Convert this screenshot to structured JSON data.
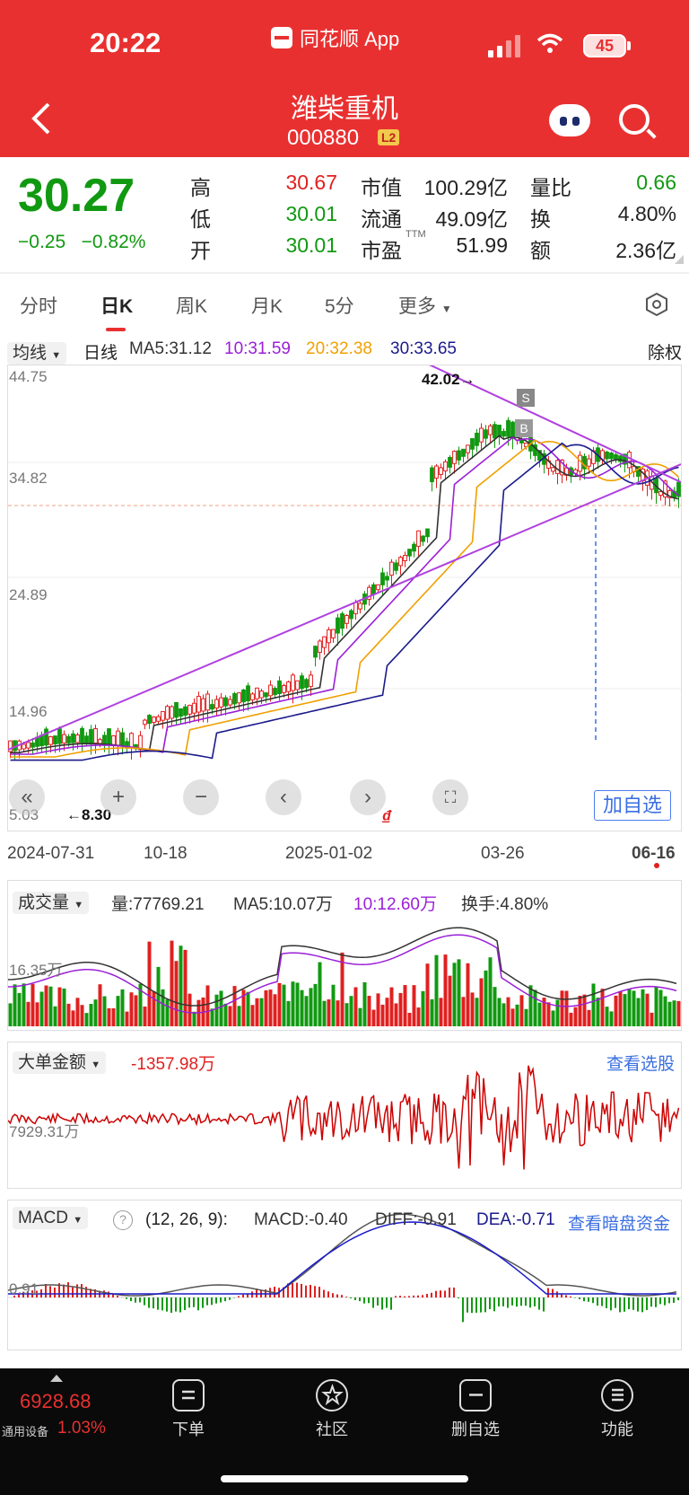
{
  "status_bar": {
    "time": "20:22",
    "app_name": "同花顺 App",
    "battery": "45"
  },
  "header": {
    "stock_name": "潍柴重机",
    "stock_code": "000880",
    "level_badge": "L2"
  },
  "quote": {
    "price": "30.27",
    "change": "−0.25",
    "change_pct": "−0.82%",
    "high_label": "高",
    "high": "30.67",
    "low_label": "低",
    "low": "30.01",
    "open_label": "开",
    "open": "30.01",
    "mcap_label": "市值",
    "mcap": "100.29亿",
    "float_label": "流通",
    "float": "49.09亿",
    "pe_label": "市盈",
    "pe_sup": "TTM",
    "pe": "51.99",
    "vol_ratio_label": "量比",
    "vol_ratio": "0.66",
    "turnover_label": "换",
    "turnover": "4.80%",
    "amount_label": "额",
    "amount": "2.36亿"
  },
  "tabs": [
    "分时",
    "日K",
    "周K",
    "月K",
    "5分",
    "更多"
  ],
  "active_tab": "日K",
  "ma_bar": {
    "selector": "均线",
    "period": "日线",
    "ma5": "MA5:31.12",
    "ma10": "10:31.59",
    "ma20": "20:32.38",
    "ma30": "30:33.65",
    "adjust": "除权"
  },
  "kline": {
    "y_labels": [
      "44.75",
      "34.82",
      "24.89",
      "14.96",
      "5.03"
    ],
    "high_marker": "42.02→",
    "low_marker": "←8.30",
    "x_labels": [
      "2024-07-31",
      "10-18",
      "2025-01-02",
      "03-26",
      "06-16"
    ],
    "signal_s": "S",
    "signal_b": "B",
    "add_favorite": "加自选"
  },
  "volume": {
    "selector": "成交量",
    "vol": "量:77769.21",
    "ma5": "MA5:10.07万",
    "ma10": "10:12.60万",
    "turnover": "换手:4.80%",
    "axis_label": "16.35万"
  },
  "big_order": {
    "selector": "大单金额",
    "value": "-1357.98万",
    "link": "查看选股",
    "axis_label": "7929.31万"
  },
  "macd": {
    "selector": "MACD",
    "params": "(12, 26, 9):",
    "macd": "MACD:-0.40",
    "diff": "DIFF:-0.91",
    "dea": "DEA:-0.71",
    "link": "查看暗盘资金",
    "axis_label": "0.91"
  },
  "bottom_nav": {
    "index_value": "6928.68",
    "index_name": "通用设备",
    "index_pct": "1.03%",
    "items": [
      "下单",
      "社区",
      "删自选",
      "功能"
    ]
  },
  "colors": {
    "brand_red": "#e93030",
    "down_green": "#119911",
    "ma5": "#333333",
    "ma10": "#9b1fd8",
    "ma20": "#f0a000",
    "ma30": "#1a1a8c"
  }
}
